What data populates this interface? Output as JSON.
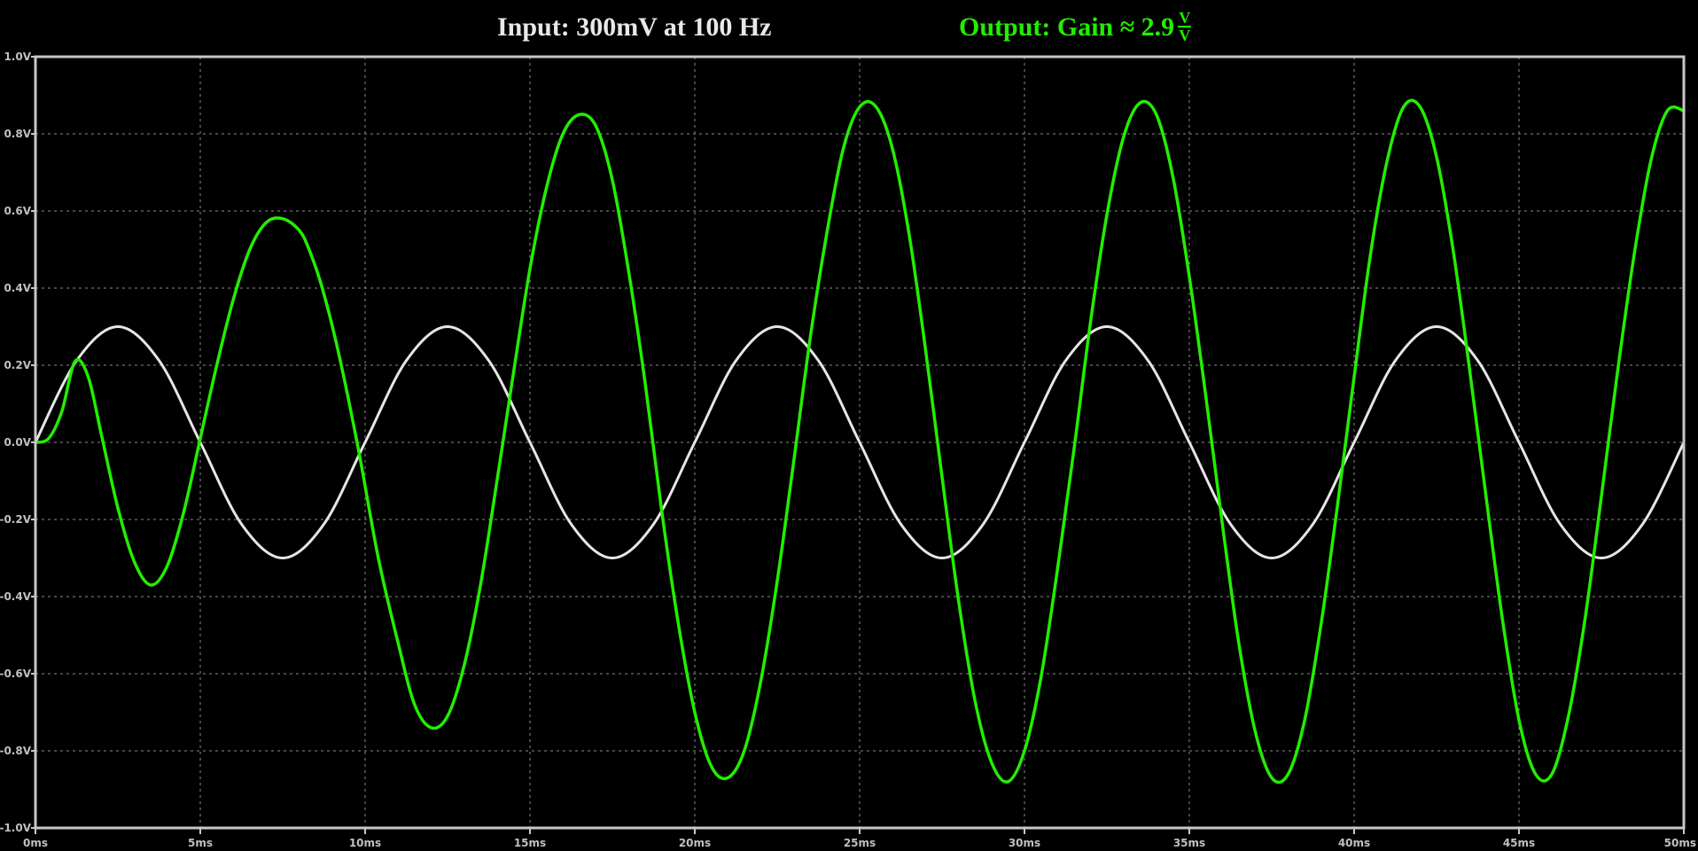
{
  "header": {
    "input_label": "Input:  300mV at 100 Hz",
    "output_label": "Output:  Gain ≈ 2.9",
    "gain_unit_numerator": "V",
    "gain_unit_denominator": "V"
  },
  "colors": {
    "background": "#000000",
    "axis_frame": "#c8c8c8",
    "grid": "#8a8a8a",
    "tick_label": "#c0c0c0",
    "input_trace": "#e6e6e6",
    "output_trace": "#22ee00"
  },
  "chart_data": {
    "type": "line",
    "grid": true,
    "xlim": [
      0,
      50
    ],
    "ylim": [
      -1.0,
      1.0
    ],
    "x_ticks": [
      0,
      5,
      10,
      15,
      20,
      25,
      30,
      35,
      40,
      45,
      50
    ],
    "x_tick_labels": [
      "0ms",
      "5ms",
      "10ms",
      "15ms",
      "20ms",
      "25ms",
      "30ms",
      "35ms",
      "40ms",
      "45ms",
      "50ms"
    ],
    "y_ticks": [
      1.0,
      0.8,
      0.6,
      0.4,
      0.2,
      0.0,
      -0.2,
      -0.4,
      -0.6,
      -0.8,
      -1.0
    ],
    "y_tick_labels": [
      "1.0V",
      "0.8V",
      "0.6V",
      "0.4V",
      "0.2V",
      "0.0V",
      "-0.2V",
      "-0.4V",
      "-0.6V",
      "-0.8V",
      "-1.0V"
    ],
    "series": [
      {
        "color": "#e6e6e6",
        "x": [
          0,
          1.25,
          2.5,
          3.75,
          5,
          6.25,
          7.5,
          8.75,
          10,
          11.25,
          12.5,
          13.75,
          15,
          16.25,
          17.5,
          18.75,
          20,
          21.25,
          22.5,
          23.75,
          25,
          26.25,
          27.5,
          28.75,
          30,
          31.25,
          32.5,
          33.75,
          35,
          36.25,
          37.5,
          38.75,
          40,
          41.25,
          42.5,
          43.75,
          45,
          46.25,
          47.5,
          48.75,
          50
        ],
        "y": [
          0,
          0.212,
          0.3,
          0.212,
          0,
          -0.212,
          -0.3,
          -0.212,
          0,
          0.212,
          0.3,
          0.212,
          0,
          -0.212,
          -0.3,
          -0.212,
          0,
          0.212,
          0.3,
          0.212,
          0,
          -0.212,
          -0.3,
          -0.212,
          0,
          0.212,
          0.3,
          0.212,
          0,
          -0.212,
          -0.3,
          -0.212,
          0,
          0.212,
          0.3,
          0.212,
          0,
          -0.212,
          -0.3,
          -0.212,
          0
        ]
      },
      {
        "color": "#22ee00",
        "x": [
          0,
          0.4,
          0.8,
          1.2,
          1.6,
          2.0,
          2.5,
          3.0,
          3.5,
          4.0,
          4.5,
          5.0,
          5.5,
          6.0,
          6.5,
          7.0,
          7.5,
          8.0,
          8.3,
          8.7,
          9.2,
          9.8,
          10.4,
          11.0,
          11.5,
          12.0,
          12.5,
          13.0,
          13.5,
          14.0,
          14.5,
          15.0,
          15.5,
          16.0,
          16.5,
          17.0,
          17.5,
          18.0,
          18.5,
          19.0,
          19.5,
          20.0,
          20.5,
          21.0,
          21.5,
          22.0,
          22.5,
          23.0,
          23.5,
          24.0,
          24.5,
          25.0,
          25.5,
          26.0,
          26.5,
          27.0,
          27.5,
          28.0,
          28.5,
          29.0,
          29.5,
          30.0,
          30.5,
          31.0,
          31.5,
          32.0,
          32.5,
          33.0,
          33.5,
          34.0,
          34.5,
          35.0,
          35.5,
          36.0,
          36.5,
          37.0,
          37.5,
          38.0,
          38.5,
          39.0,
          39.5,
          40.0,
          40.5,
          41.0,
          41.5,
          42.0,
          42.5,
          43.0,
          43.5,
          44.0,
          44.5,
          45.0,
          45.5,
          46.0,
          46.5,
          47.0,
          47.5,
          48.0,
          48.5,
          49.0,
          49.5,
          50.0
        ],
        "y": [
          0,
          0.01,
          0.08,
          0.21,
          0.17,
          0.02,
          -0.17,
          -0.31,
          -0.37,
          -0.32,
          -0.18,
          0.01,
          0.2,
          0.37,
          0.5,
          0.57,
          0.58,
          0.55,
          0.5,
          0.4,
          0.23,
          -0.02,
          -0.3,
          -0.52,
          -0.68,
          -0.74,
          -0.71,
          -0.58,
          -0.37,
          -0.1,
          0.18,
          0.45,
          0.66,
          0.8,
          0.85,
          0.82,
          0.68,
          0.44,
          0.15,
          -0.18,
          -0.47,
          -0.7,
          -0.84,
          -0.87,
          -0.8,
          -0.62,
          -0.36,
          -0.05,
          0.27,
          0.54,
          0.76,
          0.87,
          0.87,
          0.76,
          0.54,
          0.24,
          -0.09,
          -0.41,
          -0.67,
          -0.83,
          -0.88,
          -0.8,
          -0.61,
          -0.33,
          -0.02,
          0.31,
          0.59,
          0.79,
          0.88,
          0.85,
          0.69,
          0.43,
          0.12,
          -0.21,
          -0.52,
          -0.75,
          -0.87,
          -0.86,
          -0.72,
          -0.47,
          -0.16,
          0.17,
          0.49,
          0.73,
          0.87,
          0.87,
          0.74,
          0.5,
          0.19,
          -0.14,
          -0.46,
          -0.72,
          -0.86,
          -0.86,
          -0.71,
          -0.46,
          -0.14,
          0.19,
          0.49,
          0.73,
          0.86,
          0.86
        ]
      }
    ]
  }
}
